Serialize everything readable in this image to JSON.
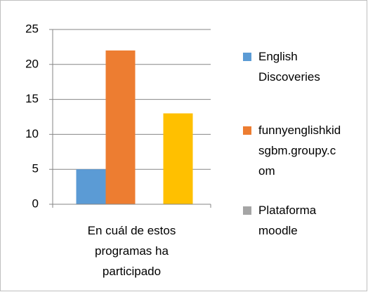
{
  "chart_data": {
    "type": "bar",
    "categories": [
      "En cuál de estos programas ha participado"
    ],
    "series": [
      {
        "name": "English Discoveries",
        "color": "#5b9bd5",
        "legend_color": "#5b9bd5",
        "values": [
          5
        ]
      },
      {
        "name": "funnyenglishkidsgbm.groupy.com",
        "color": "#ed7d31",
        "legend_color": "#ed7d31",
        "values": [
          22
        ]
      },
      {
        "name": "Plataforma moodle",
        "color": "#ffc000",
        "legend_color": "#a5a5a5",
        "values": [
          13
        ]
      }
    ],
    "ylim": [
      0,
      25
    ],
    "yticks": [
      0,
      5,
      10,
      15,
      20,
      25
    ],
    "grid": true,
    "legend": "right"
  }
}
